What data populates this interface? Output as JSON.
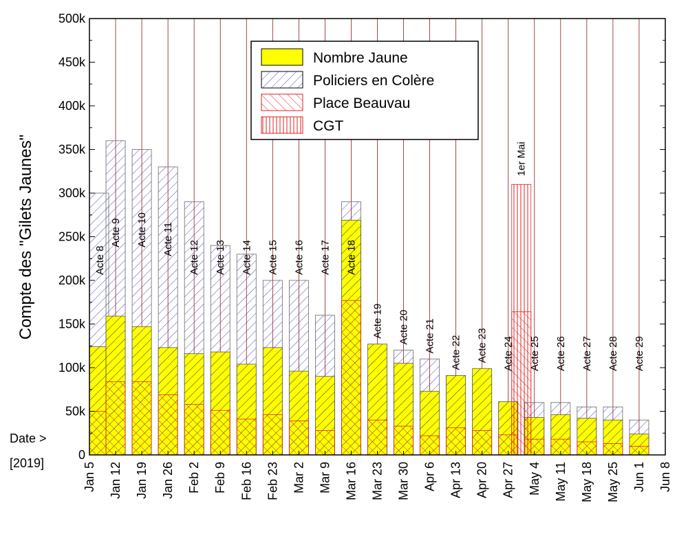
{
  "chart_data": {
    "type": "bar",
    "ylabel": "Compte des \"Gilets Jaunes\"",
    "xlabel_lines": [
      "Date >",
      "[2019]"
    ],
    "ylim": [
      0,
      500000
    ],
    "yticks": [
      "0",
      "50k",
      "100k",
      "150k",
      "200k",
      "250k",
      "300k",
      "350k",
      "400k",
      "450k",
      "500k"
    ],
    "ytick_values": [
      0,
      50000,
      100000,
      150000,
      200000,
      250000,
      300000,
      350000,
      400000,
      450000,
      500000
    ],
    "xticks": [
      "Jan 5",
      "Jan 12",
      "Jan 19",
      "Jan 26",
      "Feb 2",
      "Feb 9",
      "Feb 16",
      "Feb 23",
      "Mar 2",
      "Mar 9",
      "Mar 16",
      "Mar 23",
      "Mar 30",
      "Apr 6",
      "Apr 13",
      "Apr 20",
      "Apr 27",
      "May 4",
      "May 11",
      "May 18",
      "May 25",
      "Jun 1",
      "Jun 8"
    ],
    "legend": {
      "placement": "top-center",
      "entries": [
        {
          "label": "Nombre Jaune",
          "pattern": "solid-yellow"
        },
        {
          "label": "Policiers en Colère",
          "pattern": "diagonal-blue"
        },
        {
          "label": "Place Beauvau",
          "pattern": "diagonal-red"
        },
        {
          "label": "CGT",
          "pattern": "vertical-red"
        }
      ]
    },
    "colors": {
      "yellow": "#ffff00",
      "blue": "#4a4ac8",
      "red": "#e02020",
      "vline": "#8b1a1a"
    },
    "acts": [
      {
        "date": "Jan 5",
        "label": "Acte 8",
        "nombre_jaune": 124000,
        "policiers": 300000,
        "beauvau": 50000
      },
      {
        "date": "Jan 12",
        "label": "Acte 9",
        "nombre_jaune": 159000,
        "policiers": 360000,
        "beauvau": 84000
      },
      {
        "date": "Jan 19",
        "label": "Acte 10",
        "nombre_jaune": 147000,
        "policiers": 350000,
        "beauvau": 84000
      },
      {
        "date": "Jan 26",
        "label": "Acte 11",
        "nombre_jaune": 123000,
        "policiers": 330000,
        "beauvau": 69000
      },
      {
        "date": "Feb 2",
        "label": "Acte 12",
        "nombre_jaune": 116000,
        "policiers": 290000,
        "beauvau": 58000
      },
      {
        "date": "Feb 9",
        "label": "Acte 13",
        "nombre_jaune": 118000,
        "policiers": 240000,
        "beauvau": 51000
      },
      {
        "date": "Feb 16",
        "label": "Acte 14",
        "nombre_jaune": 104000,
        "policiers": 230000,
        "beauvau": 41000
      },
      {
        "date": "Feb 23",
        "label": "Acte 15",
        "nombre_jaune": 123000,
        "policiers": 200000,
        "beauvau": 46000
      },
      {
        "date": "Mar 2",
        "label": "Acte 16",
        "nombre_jaune": 96000,
        "policiers": 200000,
        "beauvau": 39000
      },
      {
        "date": "Mar 9",
        "label": "Acte 17",
        "nombre_jaune": 90000,
        "policiers": 160000,
        "beauvau": 28000
      },
      {
        "date": "Mar 16",
        "label": "Acte 18",
        "nombre_jaune": 269000,
        "policiers": 290000,
        "beauvau": 177000
      },
      {
        "date": "Mar 23",
        "label": "Acte 19",
        "nombre_jaune": 127000,
        "policiers": 90000,
        "beauvau": 40000
      },
      {
        "date": "Mar 30",
        "label": "Acte 20",
        "nombre_jaune": 105000,
        "policiers": 120000,
        "beauvau": 33000
      },
      {
        "date": "Apr 6",
        "label": "Acte 21",
        "nombre_jaune": 73000,
        "policiers": 110000,
        "beauvau": 22000
      },
      {
        "date": "Apr 13",
        "label": "Acte 22",
        "nombre_jaune": 91000,
        "policiers": 90000,
        "beauvau": 31000
      },
      {
        "date": "Apr 20",
        "label": "Acte 23",
        "nombre_jaune": 99000,
        "policiers": 90000,
        "beauvau": 28000
      },
      {
        "date": "Apr 27",
        "label": "Acte 24",
        "nombre_jaune": 61000,
        "policiers": 60000,
        "beauvau": 23000
      },
      {
        "date": "May 4",
        "label": "Acte 25",
        "nombre_jaune": 43000,
        "policiers": 60000,
        "beauvau": 18000
      },
      {
        "date": "May 11",
        "label": "Acte 26",
        "nombre_jaune": 46000,
        "policiers": 60000,
        "beauvau": 18000
      },
      {
        "date": "May 18",
        "label": "Acte 27",
        "nombre_jaune": 42000,
        "policiers": 55000,
        "beauvau": 15000
      },
      {
        "date": "May 25",
        "label": "Acte 28",
        "nombre_jaune": 40000,
        "policiers": 55000,
        "beauvau": 13000
      },
      {
        "date": "Jun 1",
        "label": "Acte 29",
        "nombre_jaune": 24000,
        "policiers": 40000,
        "beauvau": 10000
      }
    ],
    "may_day": {
      "label": "1er Mai",
      "date_offset_weeks": 16.5,
      "cgt": 310000,
      "beauvau": 164000
    }
  }
}
